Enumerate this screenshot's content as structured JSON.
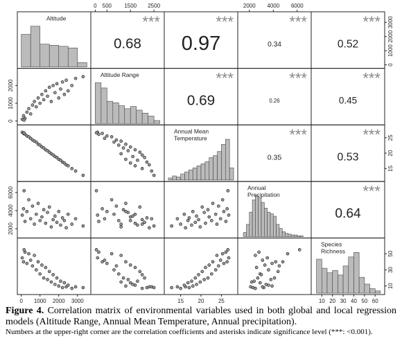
{
  "figure": {
    "significance": "***",
    "variables": [
      {
        "label": [
          "Altitude"
        ],
        "lim": [
          -100,
          3600
        ],
        "xticks": [
          0,
          1000,
          2000,
          3000
        ],
        "yticks": [
          0,
          1000,
          2000,
          3000
        ],
        "hist": {
          "bins": [
            0,
            500,
            1000,
            1500,
            2000,
            2500,
            3000,
            3500
          ],
          "counts": [
            60,
            75,
            42,
            40,
            38,
            35,
            8
          ]
        }
      },
      {
        "label": [
          "Altitude  Range"
        ],
        "lim": [
          -100,
          2850
        ],
        "xticks": [
          0,
          500,
          1500,
          2500
        ],
        "yticks": [
          0,
          1000,
          2000
        ],
        "hist": {
          "bins": [
            0,
            250,
            500,
            750,
            1000,
            1250,
            1500,
            1750,
            2000,
            2250,
            2500,
            2750
          ],
          "counts": [
            55,
            48,
            30,
            28,
            24,
            20,
            23,
            18,
            14,
            10,
            4
          ]
        }
      },
      {
        "label": [
          "Annual Mean",
          "Temperature"
        ],
        "lim": [
          11.5,
          28.5
        ],
        "xticks": [
          15,
          20,
          25
        ],
        "yticks": [
          15,
          20,
          25
        ],
        "hist": {
          "bins": [
            12,
            13,
            14,
            15,
            16,
            17,
            18,
            19,
            20,
            21,
            22,
            23,
            24,
            25,
            26,
            27,
            28
          ],
          "counts": [
            2,
            4,
            3,
            6,
            8,
            10,
            12,
            14,
            16,
            18,
            22,
            24,
            28,
            35,
            40,
            12
          ]
        }
      },
      {
        "label": [
          "Annual",
          "Precipitation"
        ],
        "lim": [
          1200,
          7000
        ],
        "xticks": [
          2000,
          4000,
          6000
        ],
        "yticks": [
          2000,
          4000,
          6000
        ],
        "hist": {
          "bins": [
            1500,
            1750,
            2000,
            2250,
            2500,
            2750,
            3000,
            3250,
            3500,
            3750,
            4000,
            4250,
            4500,
            4750,
            5000,
            5250,
            5500,
            5750,
            6000,
            6250,
            6500
          ],
          "counts": [
            5,
            15,
            30,
            45,
            50,
            48,
            42,
            35,
            30,
            28,
            25,
            15,
            10,
            6,
            4,
            3,
            2,
            2,
            1,
            1
          ]
        }
      },
      {
        "label": [
          "Species",
          "Richness"
        ],
        "lim": [
          2,
          67
        ],
        "xticks": [
          10,
          20,
          30,
          40,
          50,
          60
        ],
        "yticks": [
          10,
          30,
          50
        ],
        "hist": {
          "bins": [
            5,
            10,
            15,
            20,
            25,
            30,
            35,
            40,
            45,
            50,
            55,
            60,
            65
          ],
          "counts": [
            30,
            22,
            18,
            20,
            16,
            24,
            32,
            36,
            14,
            8,
            4,
            2
          ]
        }
      }
    ],
    "correlations": [
      [
        0.68,
        0.97,
        0.34,
        0.52
      ],
      [
        0.69,
        0.26,
        0.45
      ],
      [
        0.35,
        0.53
      ],
      [
        0.64
      ]
    ],
    "observations": [
      [
        50,
        100,
        26.8,
        3500,
        45
      ],
      [
        120,
        300,
        26.4,
        4200,
        40
      ],
      [
        200,
        150,
        26.1,
        2800,
        52
      ],
      [
        300,
        500,
        25.6,
        3900,
        38
      ],
      [
        400,
        700,
        25.3,
        5200,
        50
      ],
      [
        500,
        400,
        24.8,
        3100,
        42
      ],
      [
        600,
        900,
        24.3,
        4500,
        35
      ],
      [
        700,
        1100,
        23.9,
        2500,
        48
      ],
      [
        800,
        800,
        23.6,
        3600,
        30
      ],
      [
        900,
        1300,
        22.9,
        4800,
        40
      ],
      [
        1000,
        1000,
        22.6,
        2900,
        25
      ],
      [
        1100,
        1500,
        22.0,
        3300,
        36
      ],
      [
        1200,
        1200,
        21.7,
        4100,
        20
      ],
      [
        1300,
        1700,
        21.1,
        2600,
        33
      ],
      [
        1400,
        1400,
        20.8,
        3800,
        18
      ],
      [
        1500,
        1900,
        20.3,
        4400,
        28
      ],
      [
        1600,
        1100,
        19.8,
        2200,
        15
      ],
      [
        1700,
        2000,
        19.4,
        3000,
        24
      ],
      [
        1800,
        1600,
        18.9,
        3400,
        12
      ],
      [
        1900,
        2100,
        18.6,
        2700,
        20
      ],
      [
        2000,
        1300,
        18.0,
        3900,
        10
      ],
      [
        2100,
        1800,
        17.7,
        2400,
        16
      ],
      [
        2200,
        2200,
        17.1,
        3200,
        8
      ],
      [
        2300,
        1500,
        16.8,
        2900,
        14
      ],
      [
        2400,
        2300,
        16.2,
        2100,
        9
      ],
      [
        2500,
        1700,
        15.9,
        3600,
        11
      ],
      [
        2700,
        2000,
        15.0,
        2500,
        7
      ],
      [
        2900,
        2400,
        14.2,
        3100,
        9
      ],
      [
        150,
        50,
        26.6,
        6200,
        55
      ],
      [
        3300,
        2500,
        12.8,
        2300,
        8
      ]
    ]
  },
  "caption": {
    "label": "Figure 4.",
    "text": "Correlation matrix of environmental variables used in both global and local regression models (Altitude Range, Annual Mean Temperature, Annual precipitation).",
    "note": "Numbers at the upper-right corner are the correlation coefficients and asterisks indicate significance level (***: <0.001)."
  }
}
